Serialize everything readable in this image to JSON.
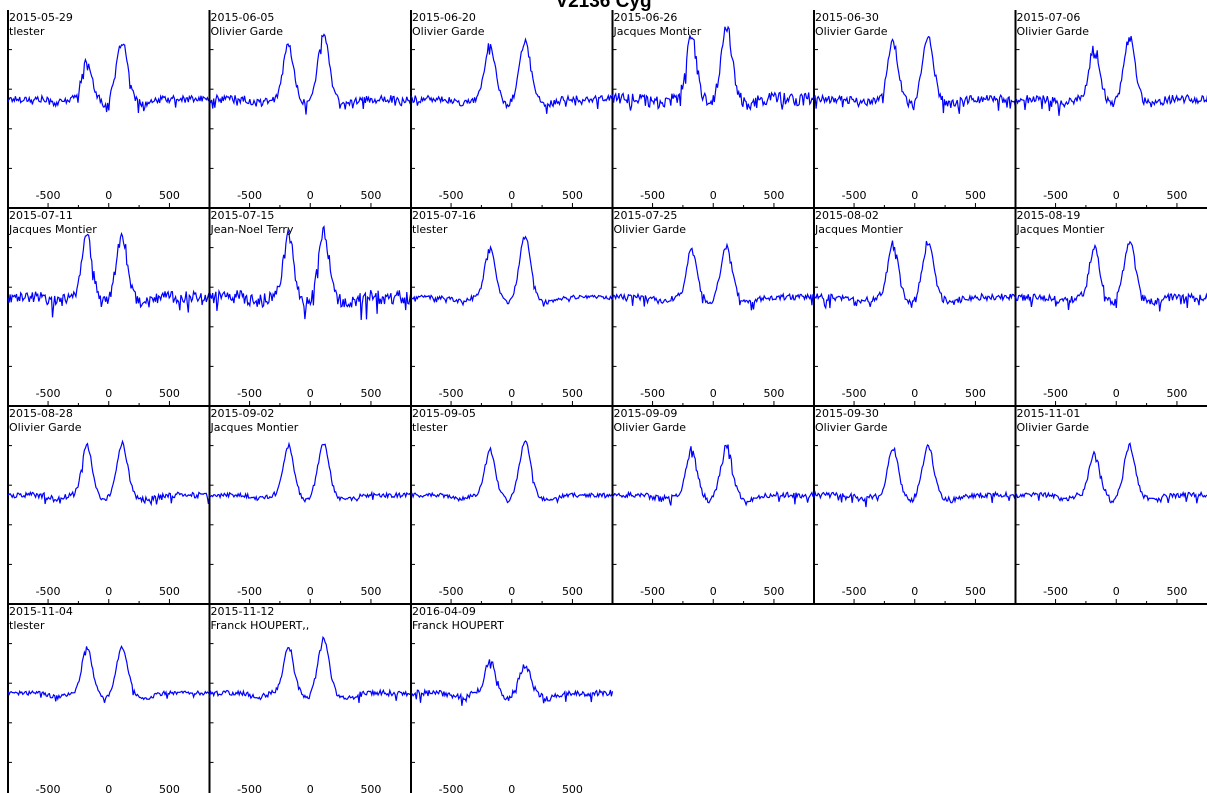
{
  "title": "V2136 Cyg",
  "colors": {
    "spectrum": "#0000ff",
    "frame": "#000000",
    "background": "#ffffff"
  },
  "chart_data": {
    "type": "line",
    "title": "V2136 Cyg",
    "xlabel": "",
    "ylabel": "",
    "xlim": [
      -830,
      830
    ],
    "ylim": [
      0,
      1
    ],
    "x_ticks": [
      -500,
      0,
      500
    ],
    "grid": false,
    "profile_shape": "double-peaked emission line; blue peak near -180, red peak near +110, continuum level about 0.55 of panel height",
    "panels": [
      {
        "date": "2015-05-29",
        "observer": "tlester",
        "blue_peak": 0.74,
        "red_peak": 0.84,
        "noise": 0.018
      },
      {
        "date": "2015-06-05",
        "observer": "Olivier Garde",
        "blue_peak": 0.82,
        "red_peak": 0.88,
        "noise": 0.02
      },
      {
        "date": "2015-06-20",
        "observer": "Olivier Garde",
        "blue_peak": 0.83,
        "red_peak": 0.84,
        "noise": 0.018
      },
      {
        "date": "2015-06-26",
        "observer": "Jacques Montier",
        "blue_peak": 0.86,
        "red_peak": 0.91,
        "noise": 0.035
      },
      {
        "date": "2015-06-30",
        "observer": "Olivier Garde",
        "blue_peak": 0.84,
        "red_peak": 0.86,
        "noise": 0.02
      },
      {
        "date": "2015-07-06",
        "observer": "Olivier Garde",
        "blue_peak": 0.82,
        "red_peak": 0.86,
        "noise": 0.022
      },
      {
        "date": "2015-07-11",
        "observer": "Jacques Montier",
        "blue_peak": 0.86,
        "red_peak": 0.86,
        "noise": 0.03
      },
      {
        "date": "2015-07-15",
        "observer": "Jean-Noel Terry",
        "blue_peak": 0.86,
        "red_peak": 0.88,
        "noise": 0.035
      },
      {
        "date": "2015-07-16",
        "observer": "tlester",
        "blue_peak": 0.8,
        "red_peak": 0.86,
        "noise": 0.01
      },
      {
        "date": "2015-07-25",
        "observer": "Olivier Garde",
        "blue_peak": 0.79,
        "red_peak": 0.81,
        "noise": 0.015
      },
      {
        "date": "2015-08-02",
        "observer": "Jacques Montier",
        "blue_peak": 0.82,
        "red_peak": 0.83,
        "noise": 0.018
      },
      {
        "date": "2015-08-19",
        "observer": "Jacques Montier",
        "blue_peak": 0.8,
        "red_peak": 0.83,
        "noise": 0.018
      },
      {
        "date": "2015-08-28",
        "observer": "Olivier Garde",
        "blue_peak": 0.8,
        "red_peak": 0.81,
        "noise": 0.015
      },
      {
        "date": "2015-09-02",
        "observer": "Jacques Montier",
        "blue_peak": 0.8,
        "red_peak": 0.81,
        "noise": 0.012
      },
      {
        "date": "2015-09-05",
        "observer": "tlester",
        "blue_peak": 0.78,
        "red_peak": 0.82,
        "noise": 0.01
      },
      {
        "date": "2015-09-09",
        "observer": "Olivier Garde",
        "blue_peak": 0.79,
        "red_peak": 0.8,
        "noise": 0.015
      },
      {
        "date": "2015-09-30",
        "observer": "Olivier Garde",
        "blue_peak": 0.79,
        "red_peak": 0.8,
        "noise": 0.014
      },
      {
        "date": "2015-11-01",
        "observer": "Olivier Garde",
        "blue_peak": 0.77,
        "red_peak": 0.8,
        "noise": 0.014
      },
      {
        "date": "2015-11-04",
        "observer": "tlester",
        "blue_peak": 0.78,
        "red_peak": 0.78,
        "noise": 0.01
      },
      {
        "date": "2015-11-12",
        "observer": "Franck HOUPERT,,",
        "blue_peak": 0.79,
        "red_peak": 0.82,
        "noise": 0.014
      },
      {
        "date": "2016-04-09",
        "observer": "Franck HOUPERT",
        "blue_peak": 0.72,
        "red_peak": 0.69,
        "noise": 0.016
      }
    ]
  }
}
